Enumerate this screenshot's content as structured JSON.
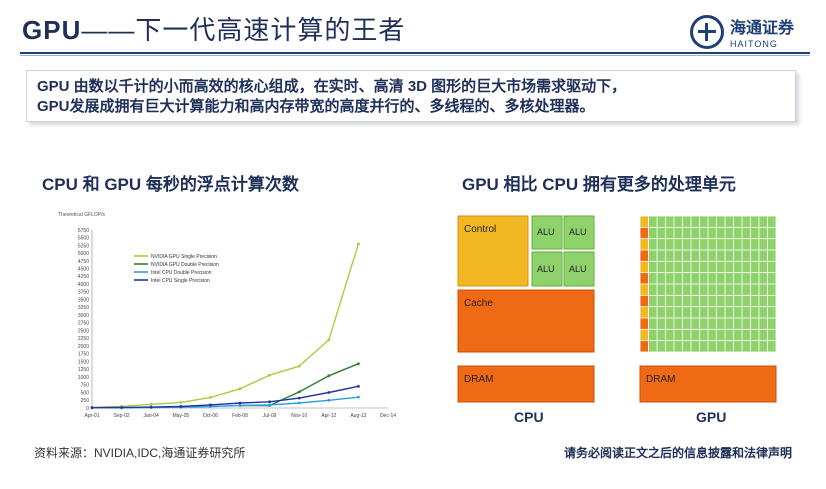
{
  "header": {
    "title_gpu": "GPU",
    "title_rest": "——下一代高速计算的王者",
    "logo_cn": "海通证券",
    "logo_en": "HAITONG"
  },
  "intro": {
    "line1": "GPU 由数以千计的小而高效的核心组成，在实时、高清 3D 图形的巨大市场需求驱动下，",
    "line2": "GPU发展成拥有巨大计算能力和高内存带宽的高度并行的、多线程的、多核处理器。"
  },
  "left_section": {
    "title": "CPU 和 GPU 每秒的浮点计算次数"
  },
  "right_section": {
    "title": "GPU 相比 CPU 拥有更多的处理单元",
    "cpu_label": "CPU",
    "gpu_label": "GPU",
    "control_label": "Control",
    "alu_label": "ALU",
    "cache_label": "Cache",
    "dram_label": "DRAM",
    "colors": {
      "control": "#f2b824",
      "alu": "#8fd16a",
      "cache": "#f06a16",
      "dram": "#f06a16",
      "gpu_core": "#8fd16a"
    }
  },
  "footer": {
    "source": "资料来源：NVIDIA,IDC,海通证券研究所",
    "disclaimer": "请务必阅读正文之后的信息披露和法律声明"
  },
  "chart_data": {
    "type": "line",
    "title": "Theoretical GFLOP/s",
    "categories": [
      "Apr-01",
      "Sep-02",
      "Jan-04",
      "May-05",
      "Oct-06",
      "Feb-08",
      "Jul-09",
      "Nov-10",
      "Apr-12",
      "Aug-13",
      "Dec-14"
    ],
    "yticks": [
      0,
      250,
      500,
      750,
      1000,
      1250,
      1500,
      1750,
      2000,
      2250,
      2500,
      2750,
      3000,
      3250,
      3500,
      3750,
      4000,
      4250,
      4500,
      4750,
      5000,
      5250,
      5500,
      5750
    ],
    "ylim": [
      0,
      5750
    ],
    "legend_position": "top-left",
    "series": [
      {
        "name": "NVIDIA GPU Single Precision",
        "color": "#a6cf3b",
        "values": [
          20,
          50,
          120,
          180,
          340,
          620,
          1060,
          1350,
          2200,
          5300,
          null
        ]
      },
      {
        "name": "NVIDIA GPU Double Precision",
        "color": "#2e7d2e",
        "values": [
          null,
          null,
          null,
          null,
          null,
          80,
          80,
          520,
          1040,
          1430,
          null
        ]
      },
      {
        "name": "Intel CPU Double Precision",
        "color": "#2ca0dc",
        "values": [
          5,
          8,
          15,
          25,
          50,
          80,
          100,
          160,
          250,
          350,
          null
        ]
      },
      {
        "name": "Intel CPU Single Precision",
        "color": "#2233aa",
        "values": [
          10,
          16,
          30,
          50,
          100,
          160,
          200,
          320,
          500,
          700,
          null
        ]
      }
    ]
  }
}
